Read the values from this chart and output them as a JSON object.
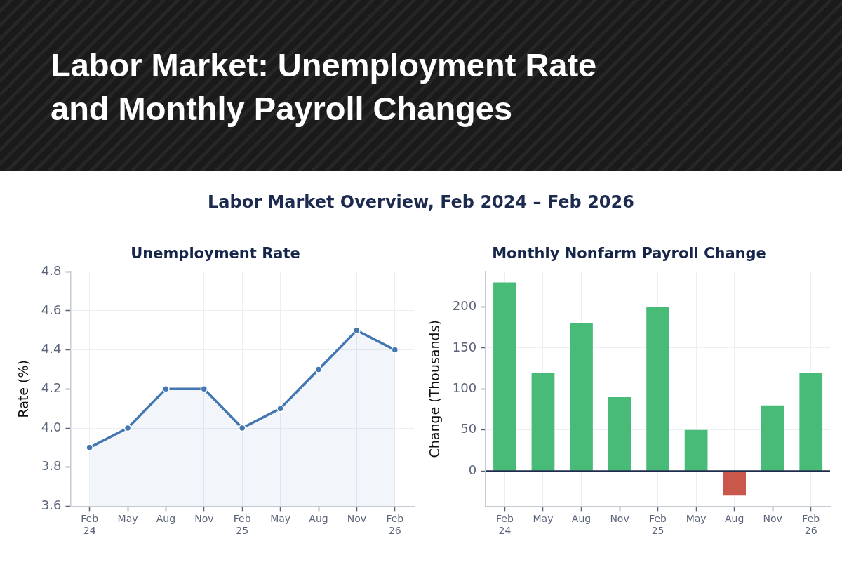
{
  "chart_data": [
    {
      "type": "other",
      "title": "Labor Market: Unemployment Rate and Monthly Payroll Changes",
      "subtitle": "Labor Market Overview, Feb 2024 – Feb 2026"
    },
    {
      "type": "area",
      "title": "Unemployment Rate",
      "ylabel": "Rate (%)",
      "categories": [
        "Feb\n24",
        "May",
        "Aug",
        "Nov",
        "Feb\n25",
        "May",
        "Aug",
        "Nov",
        "Feb\n26"
      ],
      "values": [
        3.9,
        4.0,
        4.2,
        4.2,
        4.0,
        4.1,
        4.3,
        4.5,
        4.4
      ],
      "color": "#4377b1",
      "ylim": [
        3.6,
        4.8
      ],
      "yticks": [
        3.6,
        3.8,
        {
          "value": 4,
          "label": "4.0"
        },
        4.2,
        4.4,
        4.6,
        4.8
      ],
      "grid": true,
      "marker": "circle"
    },
    {
      "type": "bar",
      "title": "Monthly Nonfarm Payroll Change",
      "ylabel": "Change (Thousands)",
      "categories": [
        "Feb\n24",
        "May",
        "Aug",
        "Nov",
        "Feb\n25",
        "May",
        "Aug",
        "Nov",
        "Feb\n26"
      ],
      "values": [
        230,
        120,
        180,
        90,
        200,
        50,
        -30,
        80,
        120
      ],
      "colors": [
        "#48bb78",
        "#48bb78",
        "#48bb78",
        "#48bb78",
        "#48bb78",
        "#48bb78",
        "#c9574b",
        "#48bb78",
        "#48bb78"
      ],
      "ylim": [
        -43,
        243
      ],
      "yticks": [
        0,
        50,
        100,
        150,
        200
      ],
      "grid": true,
      "ref_lines": [
        {
          "axis": "y",
          "value": 0,
          "color": "#1e2b4a"
        }
      ]
    }
  ]
}
